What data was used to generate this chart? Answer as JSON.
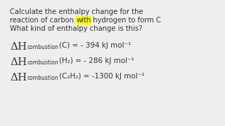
{
  "background_color": "#eeeeee",
  "title_lines": [
    "Calculate the enthalpy change for the",
    "reaction of carbon with hydrogen to form C",
    "What kind of enthalpy change is this?"
  ],
  "highlight_color": "#ffff00",
  "equations": [
    {
      "species": "(C) = - 394 kJ mol⁻¹"
    },
    {
      "species": "(H₂) = - 286 kJ mol⁻¹"
    },
    {
      "species": "(C₂H₂) = -1300 kJ mol⁻¹"
    }
  ],
  "text_color": "#333333",
  "font_size_title": 7.2,
  "font_size_eq_main": 11.0,
  "font_size_eq_sub": 5.5,
  "font_size_eq_species": 7.5
}
